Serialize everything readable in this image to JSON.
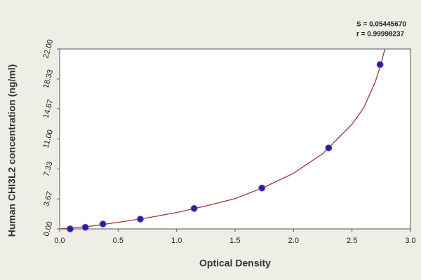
{
  "chart_data": {
    "type": "scatter",
    "xlabel": "Optical Density",
    "ylabel": "Human CHI3L2 concentration (ng/ml)",
    "annotations": [
      "S = 0.05445670",
      "r = 0.99998237"
    ],
    "x": [
      0.09,
      0.22,
      0.37,
      0.69,
      1.15,
      1.73,
      2.3,
      2.74
    ],
    "values": [
      0.0,
      0.2,
      0.6,
      1.2,
      2.5,
      5.0,
      9.9,
      20.1
    ],
    "color": "#2b1d9e",
    "fit": {
      "x": [
        0,
        0.25,
        0.5,
        0.75,
        1.0,
        1.25,
        1.5,
        1.75,
        2.0,
        2.25,
        2.5,
        2.6,
        2.7,
        2.75,
        2.8
      ],
      "values": [
        0,
        0.3,
        0.8,
        1.35,
        2.0,
        2.8,
        3.7,
        5.1,
        6.8,
        9.2,
        12.8,
        14.8,
        18.0,
        20.3,
        23
      ],
      "color": "#a8342c"
    },
    "xlim": [
      0,
      3.0
    ],
    "xticks": [
      {
        "value": 0,
        "label": "0.0"
      },
      0.5,
      {
        "value": 1,
        "label": "1.0"
      },
      1.5,
      {
        "value": 2,
        "label": "2.0"
      },
      2.5,
      {
        "value": 3,
        "label": "3.0"
      }
    ],
    "ylim": [
      0,
      22
    ],
    "yticks": [
      {
        "value": 0,
        "label": "0.00"
      },
      3.67,
      7.33,
      {
        "value": 11,
        "label": "11.00"
      },
      14.67,
      18.33,
      {
        "value": 22,
        "label": "22.00"
      }
    ]
  }
}
